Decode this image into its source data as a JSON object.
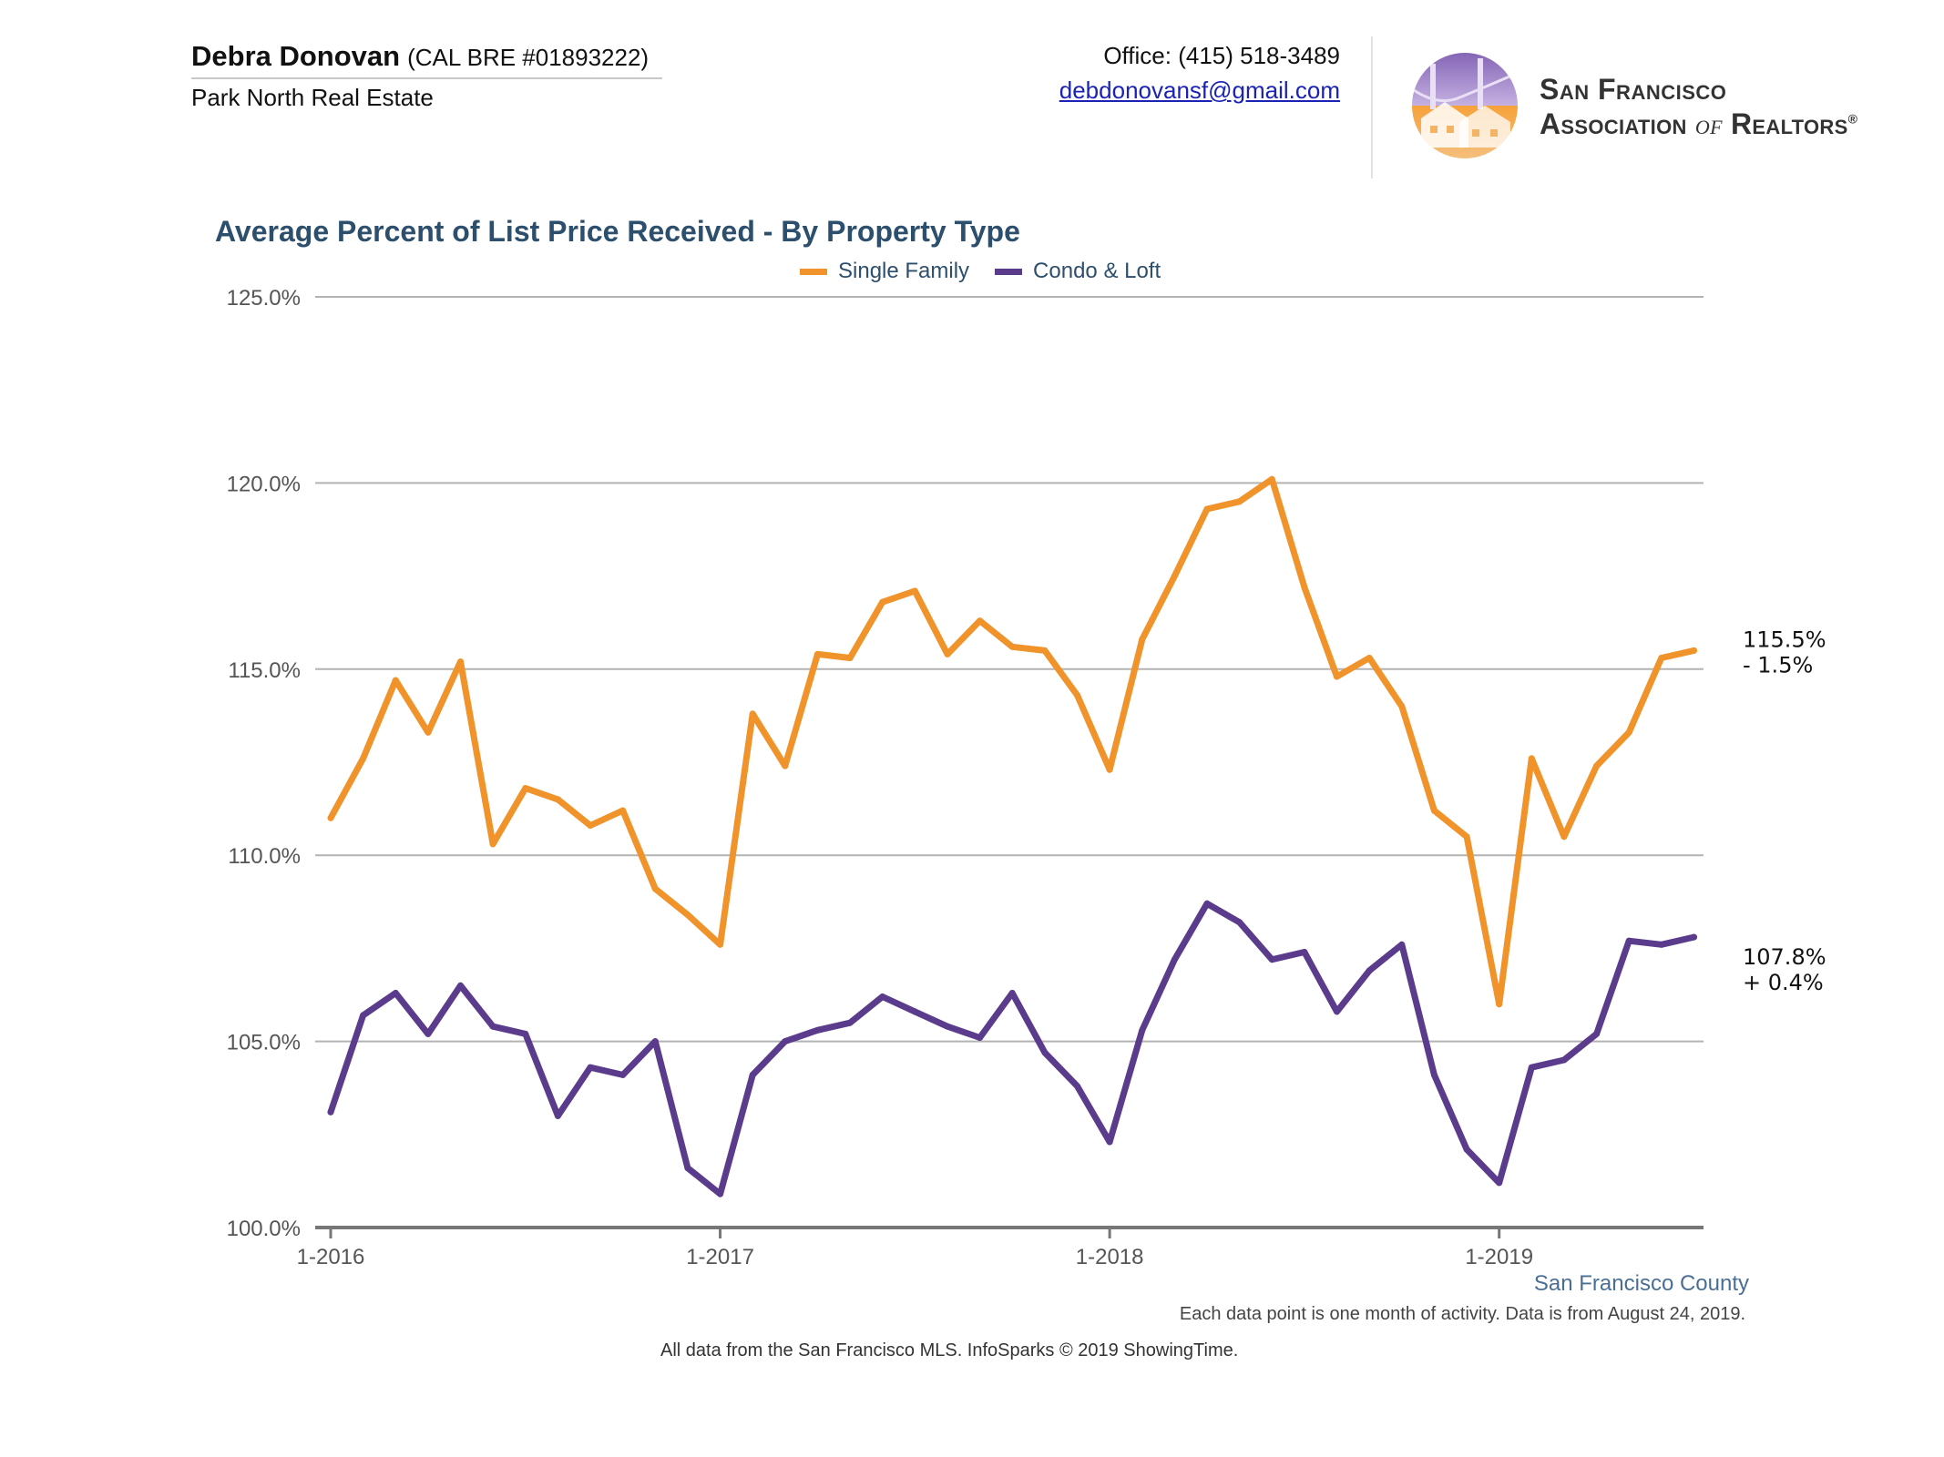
{
  "header": {
    "agent_name": "Debra Donovan",
    "agent_license": "(CAL BRE #01893222)",
    "brokerage": "Park North Real Estate",
    "office_phone": "Office: (415) 518-3489",
    "email": "debdonovansf@gmail.com",
    "org_line1": "San Francisco",
    "org_line2_a": "Association ",
    "org_line2_of": "of",
    "org_line2_b": " Realtors",
    "org_reg": "®"
  },
  "footer": {
    "county": "San Francisco County",
    "note": "Each data point is one month of activity. Data is from August 24, 2019.",
    "source": "All data from the San Francisco MLS. InfoSparks © 2019 ShowingTime."
  },
  "colors": {
    "single_family": "#f0932b",
    "condo_loft": "#5b3b8c",
    "title": "#2d4f6e",
    "grid": "#b3b3b3",
    "axis": "#777777"
  },
  "chart_data": {
    "type": "line",
    "title": "Average Percent of List Price Received - By Property Type",
    "xlabel": "",
    "ylabel": "",
    "ylim": [
      100,
      125
    ],
    "y_ticks": [
      "100.0%",
      "105.0%",
      "110.0%",
      "115.0%",
      "120.0%",
      "125.0%"
    ],
    "y_tick_values": [
      100,
      105,
      110,
      115,
      120,
      125
    ],
    "x_tick_labels": [
      "1-2016",
      "1-2017",
      "1-2018",
      "1-2019"
    ],
    "x_tick_indices": [
      0,
      12,
      24,
      36
    ],
    "months": 43,
    "grid": true,
    "legend_position": "top-center",
    "series": [
      {
        "name": "Single Family",
        "color": "#f0932b",
        "values": [
          111.0,
          112.6,
          114.7,
          113.3,
          115.2,
          110.3,
          111.8,
          111.5,
          110.8,
          111.2,
          109.1,
          108.4,
          107.6,
          113.8,
          112.4,
          115.4,
          115.3,
          116.8,
          117.1,
          115.4,
          116.3,
          115.6,
          115.5,
          114.3,
          112.3,
          115.8,
          117.5,
          119.3,
          119.5,
          120.1,
          117.2,
          114.8,
          115.3,
          114.0,
          111.2,
          110.5,
          106.0,
          112.6,
          110.5,
          112.4,
          113.3,
          115.3,
          115.5
        ],
        "end_value_label": "115.5%",
        "end_change_label": "- 1.5%"
      },
      {
        "name": "Condo & Loft",
        "color": "#5b3b8c",
        "values": [
          103.1,
          105.7,
          106.3,
          105.2,
          106.5,
          105.4,
          105.2,
          103.0,
          104.3,
          104.1,
          105.0,
          101.6,
          100.9,
          104.1,
          105.0,
          105.3,
          105.5,
          106.2,
          105.8,
          105.4,
          105.1,
          106.3,
          104.7,
          103.8,
          102.3,
          105.3,
          107.2,
          108.7,
          108.2,
          107.2,
          107.4,
          105.8,
          106.9,
          107.6,
          104.1,
          102.1,
          101.2,
          104.3,
          104.5,
          105.2,
          107.7,
          107.6,
          107.8
        ],
        "end_value_label": "107.8%",
        "end_change_label": "+ 0.4%"
      }
    ]
  }
}
